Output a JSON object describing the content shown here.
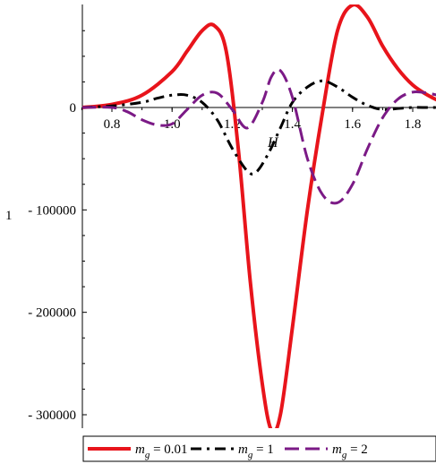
{
  "chart_data": {
    "type": "line",
    "title": "",
    "xlabel": "H",
    "ylabel": "1",
    "xlim": [
      0.7,
      1.95
    ],
    "ylim": [
      -315000,
      100000
    ],
    "x_ticks": [
      0.8,
      1.0,
      1.2,
      1.4,
      1.6,
      1.8
    ],
    "x_tick_labels": [
      "0.8",
      "1.0",
      "1.2",
      "1.4",
      "1.6",
      "1.8"
    ],
    "y_ticks": [
      0,
      -100000,
      -200000,
      -300000
    ],
    "y_tick_labels": [
      "0",
      "- 100000",
      "- 200000",
      "- 300000"
    ],
    "grid": false,
    "legend_position": "bottom",
    "series": [
      {
        "name": "m_g = 0.01",
        "legend": {
          "symbol": "m",
          "sub": "g",
          "rest": " = 0.01"
        },
        "color": "#e8141b",
        "style": "solid",
        "x": [
          0.7,
          0.8,
          0.9,
          1.0,
          1.05,
          1.1,
          1.14,
          1.18,
          1.22,
          1.26,
          1.3,
          1.33,
          1.36,
          1.4,
          1.45,
          1.5,
          1.55,
          1.6,
          1.65,
          1.7,
          1.75,
          1.8,
          1.85,
          1.9,
          1.95
        ],
        "values": [
          0,
          3000,
          12000,
          35000,
          55000,
          75000,
          80000,
          55000,
          -40000,
          -170000,
          -270000,
          -315000,
          -300000,
          -215000,
          -100000,
          -5000,
          75000,
          100000,
          88000,
          60000,
          38000,
          22000,
          12000,
          5000,
          1000
        ]
      },
      {
        "name": "m_g = 1",
        "legend": {
          "symbol": "m",
          "sub": "g",
          "rest": " = 1"
        },
        "color": "#000000",
        "style": "dashdot",
        "x": [
          0.7,
          0.8,
          0.9,
          0.95,
          1.0,
          1.05,
          1.1,
          1.15,
          1.2,
          1.25,
          1.28,
          1.32,
          1.36,
          1.4,
          1.45,
          1.5,
          1.55,
          1.6,
          1.65,
          1.7,
          1.75,
          1.8,
          1.85,
          1.9,
          1.95
        ],
        "values": [
          0,
          1500,
          5000,
          9000,
          12000,
          12000,
          5000,
          -12000,
          -40000,
          -62000,
          -63000,
          -45000,
          -20000,
          5000,
          20000,
          26000,
          20000,
          10000,
          2000,
          -2000,
          -1000,
          0,
          0,
          0,
          0
        ]
      },
      {
        "name": "m_g = 2",
        "legend": {
          "symbol": "m",
          "sub": "g",
          "rest": " = 2"
        },
        "color": "#7b1a86",
        "style": "dashed",
        "x": [
          0.7,
          0.8,
          0.85,
          0.9,
          0.95,
          1.0,
          1.05,
          1.1,
          1.15,
          1.2,
          1.25,
          1.3,
          1.33,
          1.36,
          1.4,
          1.45,
          1.5,
          1.55,
          1.6,
          1.65,
          1.7,
          1.75,
          1.8,
          1.85,
          1.9,
          1.95
        ],
        "values": [
          0,
          0,
          -4000,
          -12000,
          -17000,
          -16000,
          -2000,
          12000,
          14000,
          -2000,
          -20000,
          5000,
          30000,
          36000,
          10000,
          -50000,
          -85000,
          -93000,
          -75000,
          -40000,
          -10000,
          8000,
          15000,
          14000,
          11000,
          10000
        ]
      }
    ]
  }
}
